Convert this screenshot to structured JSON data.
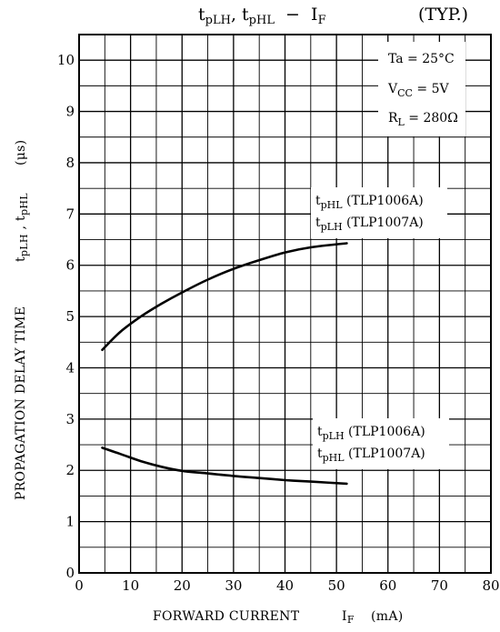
{
  "chart_data": {
    "type": "line",
    "title": {
      "main": "tpLH, tpHL − IF",
      "main_parts": {
        "t1": "t",
        "s1": "pLH",
        "sep": ", ",
        "t2": "t",
        "s2": "pHL",
        "dash": "  −  ",
        "i": "I",
        "s3": "F"
      },
      "typ": "(TYP.)"
    },
    "xlabel": {
      "text": "FORWARD CURRENT",
      "sym": "IF",
      "unit": "(mA)"
    },
    "ylabel": {
      "text": "PROPAGATION DELAY TIME",
      "sym": "tpLH , tpHL",
      "unit": "(μs)",
      "sym_parts": {
        "t1": "t",
        "s1": "pLH",
        "sep": " , ",
        "t2": "t",
        "s2": "pHL",
        "unit": "(μs)"
      }
    },
    "xlim": [
      0,
      80
    ],
    "ylim": [
      0,
      10.5
    ],
    "xticks": [
      0,
      10,
      20,
      30,
      40,
      50,
      60,
      70,
      80
    ],
    "yticks": [
      0,
      1,
      2,
      3,
      4,
      5,
      6,
      7,
      8,
      9,
      10
    ],
    "x_minor_step": 5,
    "y_minor_step": 0.5,
    "grid": true,
    "conditions": {
      "ta": "Ta = 25°C",
      "vcc": {
        "v": "V",
        "sub": "CC",
        "rest": " = 5V"
      },
      "rl": {
        "r": "R",
        "sub": "L",
        "rest": " = 280Ω"
      }
    },
    "series": [
      {
        "labels": [
          {
            "t": "t",
            "sub": "pHL",
            "part": " (TLP1006A)"
          },
          {
            "t": "t",
            "sub": "pLH",
            "part": " (TLP1007A)"
          }
        ],
        "x": [
          4.5,
          8,
          12,
          16,
          20,
          25,
          30,
          35,
          40,
          45,
          52
        ],
        "y": [
          4.35,
          4.7,
          5.0,
          5.25,
          5.47,
          5.72,
          5.93,
          6.1,
          6.25,
          6.35,
          6.43
        ]
      },
      {
        "labels": [
          {
            "t": "t",
            "sub": "pLH",
            "part": " (TLP1006A)"
          },
          {
            "t": "t",
            "sub": "pHL",
            "part": " (TLP1007A)"
          }
        ],
        "x": [
          4.5,
          8,
          12,
          16,
          20,
          25,
          30,
          35,
          40,
          45,
          52
        ],
        "y": [
          2.44,
          2.32,
          2.18,
          2.07,
          1.99,
          1.94,
          1.89,
          1.85,
          1.81,
          1.78,
          1.74
        ]
      }
    ]
  }
}
